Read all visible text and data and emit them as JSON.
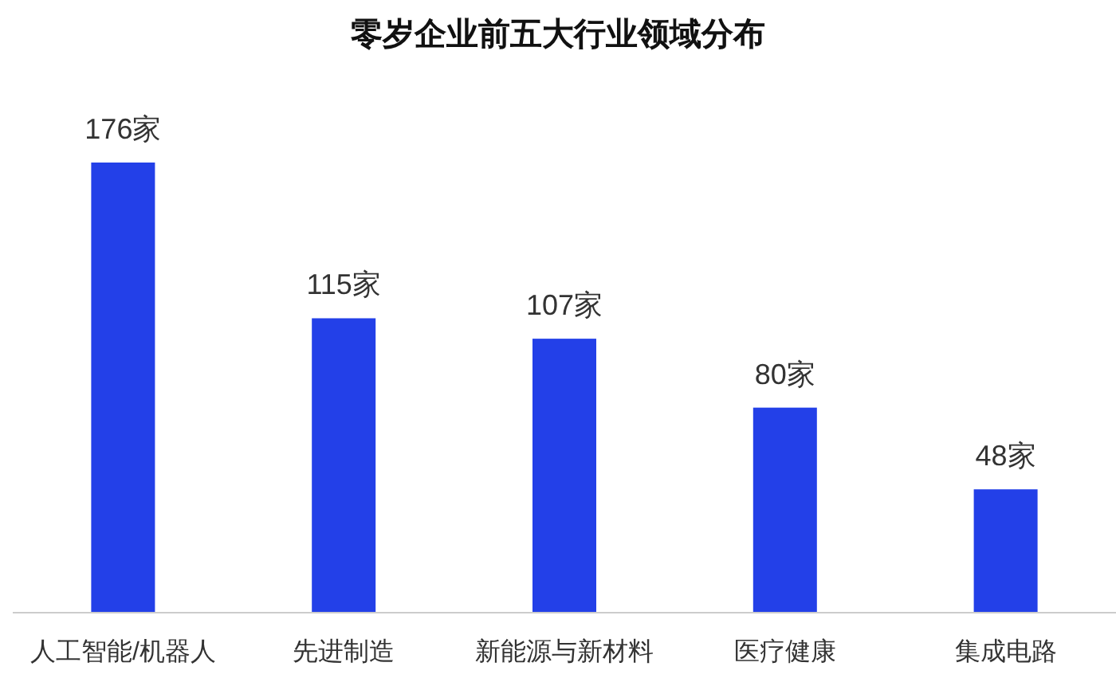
{
  "chart_data": {
    "type": "bar",
    "title": "零岁企业前五大行业领域分布",
    "categories": [
      "人工智能/机器人",
      "先进制造",
      "新能源与新材料",
      "医疗健康",
      "集成电路"
    ],
    "values": [
      176,
      115,
      107,
      80,
      48
    ],
    "value_labels": [
      "176家",
      "115家",
      "107家",
      "80家",
      "48家"
    ],
    "color": "#2340e8"
  }
}
